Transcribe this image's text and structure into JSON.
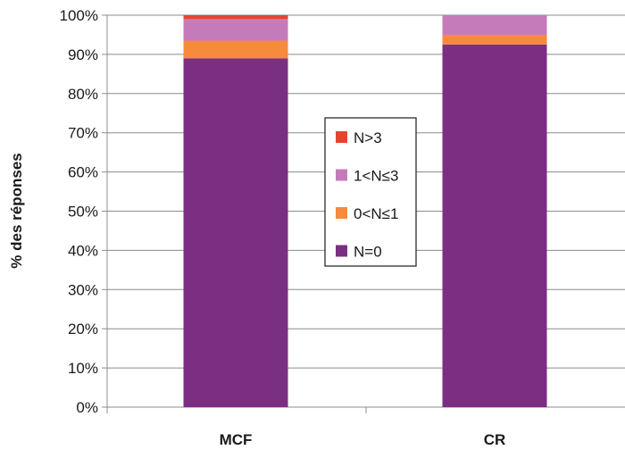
{
  "chart_data": {
    "type": "bar",
    "stacked": true,
    "categories": [
      "MCF",
      "CR"
    ],
    "series": [
      {
        "name": "N=0",
        "values": [
          89,
          92.5
        ],
        "color": "#7b2f82"
      },
      {
        "name": "0<N≤1",
        "values": [
          4.5,
          2.5
        ],
        "color": "#f68b3c"
      },
      {
        "name": "1<N≤3",
        "values": [
          5.5,
          5
        ],
        "color": "#c57bb9"
      },
      {
        "name": "N>3",
        "values": [
          1,
          0
        ],
        "color": "#e8432f"
      }
    ],
    "legend_order": [
      "N>3",
      "1<N≤3",
      "0<N≤1",
      "N=0"
    ],
    "ylabel": "% des réponses",
    "xlabel": "",
    "ylim": [
      0,
      100
    ],
    "yticks": [
      "0%",
      "10%",
      "20%",
      "30%",
      "40%",
      "50%",
      "60%",
      "70%",
      "80%",
      "90%",
      "100%"
    ],
    "grid": true,
    "legend_position": "center"
  }
}
